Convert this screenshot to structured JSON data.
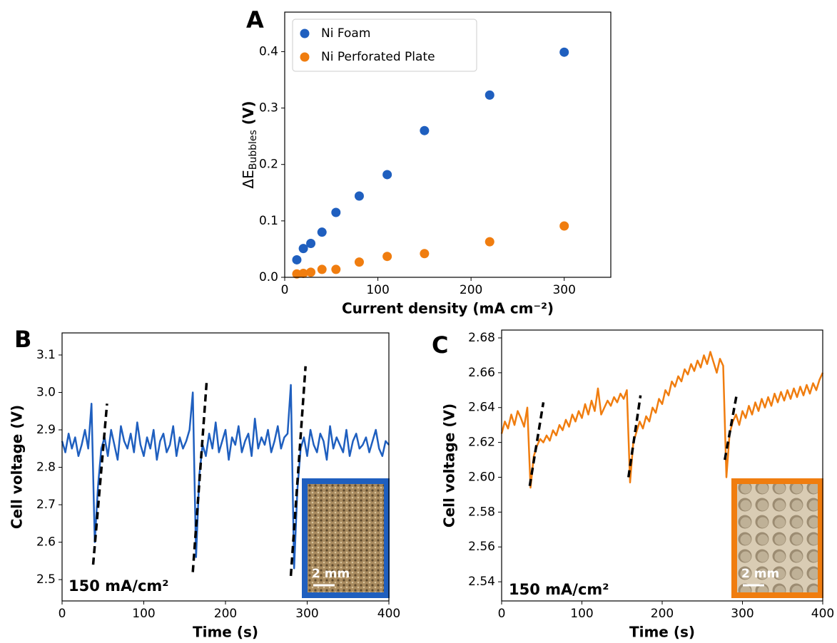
{
  "chart_data": [
    {
      "type": "scatter",
      "title": "A",
      "xlabel": "Current density (mA cm⁻²)",
      "ylabel_parts": [
        "ΔE",
        "Bubbles",
        " (V)"
      ],
      "x": [
        13,
        20,
        28,
        40,
        55,
        80,
        110,
        150,
        220,
        300
      ],
      "series": [
        {
          "name": "Ni Foam",
          "color": "#1f5fbf",
          "values": [
            0.031,
            0.051,
            0.06,
            0.08,
            0.115,
            0.144,
            0.182,
            0.26,
            0.323,
            0.399
          ]
        },
        {
          "name": "Ni Perforated Plate",
          "color": "#f07d0f",
          "values": [
            0.006,
            0.007,
            0.009,
            0.014,
            0.014,
            0.027,
            0.037,
            0.042,
            0.063,
            0.091
          ]
        }
      ],
      "xlim": [
        0,
        350
      ],
      "ylim": [
        0,
        0.47
      ],
      "xticks": [
        0,
        100,
        200,
        300
      ],
      "yticks": [
        {
          "value": 0,
          "label": "0.0"
        },
        0.1,
        0.2,
        0.3,
        0.4
      ],
      "legend": "upper left"
    },
    {
      "type": "line",
      "title": "B",
      "xlabel": "Time (s)",
      "ylabel": "Cell voltage (V)",
      "annotation": "150 mA/cm²",
      "inset_label": "2 mm",
      "x": [
        0,
        4,
        8,
        12,
        16,
        20,
        24,
        28,
        32,
        36,
        40,
        44,
        48,
        52,
        56,
        60,
        64,
        68,
        72,
        76,
        80,
        84,
        88,
        92,
        96,
        100,
        104,
        108,
        112,
        116,
        120,
        124,
        128,
        132,
        136,
        140,
        144,
        148,
        152,
        156,
        160,
        164,
        168,
        172,
        176,
        180,
        184,
        188,
        192,
        196,
        200,
        204,
        208,
        212,
        216,
        220,
        224,
        228,
        232,
        236,
        240,
        244,
        248,
        252,
        256,
        260,
        264,
        268,
        272,
        276,
        280,
        284,
        288,
        292,
        296,
        300,
        304,
        308,
        312,
        316,
        320,
        324,
        328,
        332,
        336,
        340,
        344,
        348,
        352,
        356,
        360,
        364,
        368,
        372,
        376,
        380,
        384,
        388,
        392,
        396,
        400
      ],
      "series": [
        {
          "name": "Ni Foam",
          "color": "#1f5fbf",
          "values": [
            2.87,
            2.84,
            2.89,
            2.85,
            2.88,
            2.83,
            2.86,
            2.9,
            2.85,
            2.97,
            2.6,
            2.75,
            2.85,
            2.88,
            2.83,
            2.9,
            2.86,
            2.82,
            2.91,
            2.87,
            2.85,
            2.89,
            2.84,
            2.92,
            2.86,
            2.83,
            2.88,
            2.85,
            2.9,
            2.82,
            2.87,
            2.89,
            2.84,
            2.86,
            2.91,
            2.83,
            2.88,
            2.85,
            2.87,
            2.9,
            3.0,
            2.56,
            2.78,
            2.86,
            2.83,
            2.89,
            2.85,
            2.92,
            2.84,
            2.87,
            2.9,
            2.82,
            2.88,
            2.86,
            2.91,
            2.84,
            2.87,
            2.89,
            2.83,
            2.93,
            2.85,
            2.88,
            2.86,
            2.9,
            2.84,
            2.87,
            2.91,
            2.85,
            2.88,
            2.89,
            3.02,
            2.53,
            2.74,
            2.85,
            2.88,
            2.83,
            2.9,
            2.86,
            2.84,
            2.89,
            2.87,
            2.82,
            2.91,
            2.85,
            2.88,
            2.86,
            2.84,
            2.9,
            2.83,
            2.87,
            2.89,
            2.85,
            2.86,
            2.88,
            2.84,
            2.87,
            2.9,
            2.85,
            2.83,
            2.87,
            2.86
          ]
        }
      ],
      "guides": [
        {
          "x": [
            38,
            55
          ],
          "y": [
            2.54,
            2.97
          ]
        },
        {
          "x": [
            160,
            177
          ],
          "y": [
            2.52,
            3.03
          ]
        },
        {
          "x": [
            280,
            298
          ],
          "y": [
            2.51,
            3.07
          ]
        }
      ],
      "xlim": [
        0,
        400
      ],
      "ylim": [
        2.443,
        3.159
      ],
      "xticks": [
        0,
        100,
        200,
        300,
        400
      ],
      "yticks": [
        2.5,
        2.6,
        2.7,
        2.8,
        2.9,
        {
          "value": 3,
          "label": "3.0"
        },
        3.1
      ]
    },
    {
      "type": "line",
      "title": "C",
      "xlabel": "Time (s)",
      "ylabel": "Cell voltage (V)",
      "annotation": "150 mA/cm²",
      "inset_label": "2 mm",
      "x": [
        0,
        4,
        8,
        12,
        16,
        20,
        24,
        28,
        32,
        36,
        40,
        44,
        48,
        52,
        56,
        60,
        64,
        68,
        72,
        76,
        80,
        84,
        88,
        92,
        96,
        100,
        104,
        108,
        112,
        116,
        120,
        124,
        128,
        132,
        136,
        140,
        144,
        148,
        152,
        156,
        160,
        164,
        168,
        172,
        176,
        180,
        184,
        188,
        192,
        196,
        200,
        204,
        208,
        212,
        216,
        220,
        224,
        228,
        232,
        236,
        240,
        244,
        248,
        252,
        256,
        260,
        264,
        268,
        272,
        276,
        280,
        284,
        288,
        292,
        296,
        300,
        304,
        308,
        312,
        316,
        320,
        324,
        328,
        332,
        336,
        340,
        344,
        348,
        352,
        356,
        360,
        364,
        368,
        372,
        376,
        380,
        384,
        388,
        392,
        396,
        400
      ],
      "series": [
        {
          "name": "Ni Perforated Plate",
          "color": "#f07d0f",
          "values": [
            2.625,
            2.632,
            2.628,
            2.636,
            2.63,
            2.638,
            2.634,
            2.629,
            2.64,
            2.594,
            2.612,
            2.618,
            2.622,
            2.62,
            2.624,
            2.621,
            2.627,
            2.624,
            2.63,
            2.627,
            2.633,
            2.629,
            2.636,
            2.632,
            2.638,
            2.634,
            2.642,
            2.636,
            2.644,
            2.638,
            2.651,
            2.636,
            2.64,
            2.644,
            2.641,
            2.646,
            2.643,
            2.648,
            2.645,
            2.65,
            2.597,
            2.62,
            2.626,
            2.632,
            2.628,
            2.635,
            2.632,
            2.64,
            2.637,
            2.645,
            2.642,
            2.65,
            2.647,
            2.655,
            2.652,
            2.658,
            2.655,
            2.662,
            2.659,
            2.665,
            2.661,
            2.667,
            2.663,
            2.67,
            2.665,
            2.672,
            2.666,
            2.66,
            2.668,
            2.664,
            2.6,
            2.625,
            2.632,
            2.636,
            2.63,
            2.638,
            2.634,
            2.641,
            2.636,
            2.643,
            2.638,
            2.645,
            2.64,
            2.646,
            2.641,
            2.648,
            2.643,
            2.649,
            2.644,
            2.65,
            2.645,
            2.651,
            2.646,
            2.652,
            2.647,
            2.653,
            2.648,
            2.654,
            2.65,
            2.656,
            2.66
          ]
        }
      ],
      "guides": [
        {
          "x": [
            35,
            52
          ],
          "y": [
            2.595,
            2.643
          ]
        },
        {
          "x": [
            158,
            173
          ],
          "y": [
            2.6,
            2.647
          ]
        },
        {
          "x": [
            278,
            293
          ],
          "y": [
            2.61,
            2.648
          ]
        }
      ],
      "xlim": [
        0,
        400
      ],
      "ylim": [
        2.529,
        2.6845
      ],
      "xticks": [
        0,
        100,
        200,
        300,
        400
      ],
      "yticks": [
        2.54,
        2.56,
        2.58,
        {
          "value": 2.6,
          "label": "2.60"
        },
        2.62,
        2.64,
        2.66,
        2.68
      ]
    }
  ]
}
